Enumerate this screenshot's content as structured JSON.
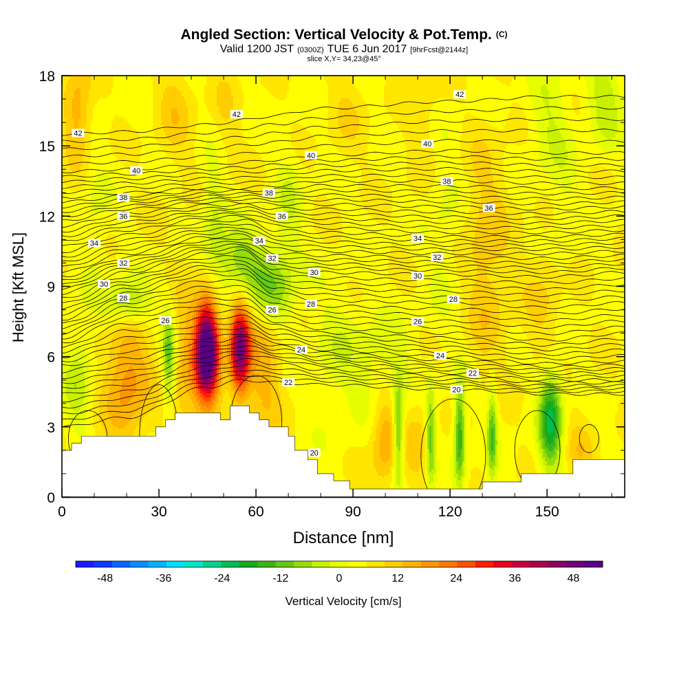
{
  "chart_data": {
    "type": "heatmap",
    "title": "Angled Section: Vertical Velocity & Pot.Temp.",
    "title_tag": "(C)",
    "subtitle_parts": [
      "Valid 1200 JST",
      "(0300Z)",
      "TUE 6 Jun 2017",
      "[9hrFcst@2144z]"
    ],
    "subtitle2": "slice X,Y= 34,23@45°",
    "xlabel": "Distance [nm]",
    "ylabel": "Height [Kft MSL]",
    "xlim": [
      0,
      174
    ],
    "ylim": [
      0,
      18
    ],
    "xticks": [
      0,
      30,
      60,
      90,
      120,
      150
    ],
    "yticks": [
      0,
      3,
      6,
      9,
      12,
      15,
      18
    ],
    "colorbar": {
      "label": "Vertical Velocity [cm/s]",
      "ticks": [
        -48,
        -36,
        -24,
        -12,
        0,
        12,
        24,
        36,
        48
      ],
      "range": [
        -54,
        54
      ],
      "colors": [
        "#1a1aff",
        "#0a3cff",
        "#0a64ff",
        "#0a8cff",
        "#00b4ff",
        "#00e1ff",
        "#00e6c8",
        "#00d28c",
        "#00be50",
        "#14aa1e",
        "#3cb414",
        "#64c814",
        "#96dc0a",
        "#c8f000",
        "#e6ff00",
        "#ffff00",
        "#ffe600",
        "#ffcd00",
        "#ffb400",
        "#ff9600",
        "#ff7800",
        "#ff5000",
        "#ff1e00",
        "#e6001e",
        "#c8003c",
        "#aa0050",
        "#8c0064",
        "#6e0078",
        "#5a0087"
      ]
    },
    "terrain_profile": [
      [
        0,
        2.0
      ],
      [
        3,
        2.0
      ],
      [
        3,
        2.3
      ],
      [
        6,
        2.3
      ],
      [
        6,
        2.6
      ],
      [
        9,
        2.6
      ],
      [
        9,
        2.6
      ],
      [
        29,
        2.6
      ],
      [
        29,
        3.0
      ],
      [
        32,
        3.0
      ],
      [
        32,
        3.3
      ],
      [
        35,
        3.3
      ],
      [
        35,
        3.6
      ],
      [
        49,
        3.6
      ],
      [
        49,
        3.3
      ],
      [
        52,
        3.3
      ],
      [
        52,
        3.9
      ],
      [
        58,
        3.9
      ],
      [
        58,
        3.6
      ],
      [
        61,
        3.6
      ],
      [
        61,
        3.3
      ],
      [
        64,
        3.3
      ],
      [
        64,
        3.0
      ],
      [
        70,
        3.0
      ],
      [
        70,
        2.6
      ],
      [
        72,
        2.6
      ],
      [
        72,
        2.0
      ],
      [
        76,
        2.0
      ],
      [
        76,
        1.6
      ],
      [
        79,
        1.6
      ],
      [
        79,
        1.0
      ],
      [
        84,
        1.0
      ],
      [
        84,
        0.7
      ],
      [
        89,
        0.7
      ],
      [
        89,
        0.35
      ],
      [
        130,
        0.35
      ],
      [
        130,
        0.65
      ],
      [
        142,
        0.65
      ],
      [
        142,
        1.0
      ],
      [
        158,
        1.0
      ],
      [
        158,
        1.6
      ],
      [
        174,
        1.6
      ]
    ],
    "w_features": [
      {
        "x": 45,
        "y": 6.3,
        "sx": 2.4,
        "sy": 1.4,
        "w": 52
      },
      {
        "x": 55,
        "y": 6.3,
        "sx": 2.2,
        "sy": 1.3,
        "w": 42
      },
      {
        "x": 40,
        "y": 5.5,
        "sx": 5,
        "sy": 2.5,
        "w": 10
      },
      {
        "x": 62,
        "y": 5.5,
        "sx": 4,
        "sy": 2.2,
        "w": 10
      },
      {
        "x": 20,
        "y": 5.0,
        "sx": 5,
        "sy": 2.0,
        "w": 14
      },
      {
        "x": 5,
        "y": 16.5,
        "sx": 3,
        "sy": 1.5,
        "w": 11
      },
      {
        "x": 35,
        "y": 16.5,
        "sx": 4,
        "sy": 1.6,
        "w": 6
      },
      {
        "x": 50,
        "y": 16.0,
        "sx": 3,
        "sy": 2.0,
        "w": 4
      },
      {
        "x": 100,
        "y": 2.6,
        "sx": 3,
        "sy": 1.5,
        "w": 12
      },
      {
        "x": 110,
        "y": 2.5,
        "sx": 3,
        "sy": 1.5,
        "w": 6
      },
      {
        "x": 131,
        "y": 11.5,
        "sx": 5,
        "sy": 3.0,
        "w": 6
      },
      {
        "x": 150,
        "y": 8.5,
        "sx": 5,
        "sy": 2.5,
        "w": 5
      },
      {
        "x": 132,
        "y": 7.5,
        "sx": 4,
        "sy": 2.0,
        "w": 4
      },
      {
        "x": 112,
        "y": 16.0,
        "sx": 4,
        "sy": 2.0,
        "w": 4
      },
      {
        "x": 88,
        "y": 16.5,
        "sx": 4,
        "sy": 1.5,
        "w": 4
      },
      {
        "x": 160,
        "y": 2.0,
        "sx": 3,
        "sy": 1.0,
        "w": 6
      },
      {
        "x": 65,
        "y": 9.0,
        "sx": 5,
        "sy": 1.2,
        "w": -14
      },
      {
        "x": 55,
        "y": 10.0,
        "sx": 5,
        "sy": 1.0,
        "w": -13
      },
      {
        "x": 33,
        "y": 6.0,
        "sx": 1.5,
        "sy": 1.5,
        "w": -18
      },
      {
        "x": 20,
        "y": 8.3,
        "sx": 5,
        "sy": 0.7,
        "w": -14
      },
      {
        "x": 5,
        "y": 5.0,
        "sx": 3,
        "sy": 1.5,
        "w": -9
      },
      {
        "x": 104,
        "y": 2.7,
        "sx": 1.1,
        "sy": 1.5,
        "w": -20
      },
      {
        "x": 114,
        "y": 2.5,
        "sx": 1.1,
        "sy": 1.5,
        "w": -17
      },
      {
        "x": 123,
        "y": 2.7,
        "sx": 1.2,
        "sy": 1.5,
        "w": -22
      },
      {
        "x": 133,
        "y": 2.7,
        "sx": 1.1,
        "sy": 1.5,
        "w": -17
      },
      {
        "x": 151,
        "y": 3.3,
        "sx": 2.5,
        "sy": 1.5,
        "w": -26
      },
      {
        "x": 47,
        "y": 12.0,
        "sx": 2.5,
        "sy": 2.0,
        "w": -8
      },
      {
        "x": 70,
        "y": 12.5,
        "sx": 3,
        "sy": 1.5,
        "w": -6
      },
      {
        "x": 168,
        "y": 17.0,
        "sx": 4,
        "sy": 1.5,
        "w": -9
      },
      {
        "x": 150,
        "y": 16.0,
        "sx": 4,
        "sy": 2.0,
        "w": -6
      },
      {
        "x": 118,
        "y": 12.0,
        "sx": 4,
        "sy": 3.0,
        "w": -4
      },
      {
        "x": 85,
        "y": 6.0,
        "sx": 6,
        "sy": 2.0,
        "w": -5
      },
      {
        "x": 100,
        "y": 5.5,
        "sx": 6,
        "sy": 1.5,
        "w": -6
      },
      {
        "x": 155,
        "y": 12.0,
        "sx": 3,
        "sy": 3.0,
        "w": -4
      },
      {
        "x": 10,
        "y": 12.0,
        "sx": 3,
        "sy": 2.0,
        "w": -4
      }
    ],
    "theta_profile": {
      "x": [
        0,
        20,
        45,
        56,
        66,
        80,
        120,
        150,
        174
      ],
      "rows": [
        {
          "theta": 20,
          "h": [
            3.0,
            3.4,
            4.7,
            5.0,
            4.9,
            4.8,
            4.6,
            4.4,
            4.4
          ]
        },
        {
          "theta": 22,
          "h": [
            4.4,
            4.8,
            5.8,
            6.1,
            5.9,
            5.6,
            5.3,
            5.0,
            5.0
          ]
        },
        {
          "theta": 24,
          "h": [
            5.6,
            6.2,
            6.8,
            7.0,
            6.6,
            6.3,
            6.0,
            5.7,
            5.8
          ]
        },
        {
          "theta": 26,
          "h": [
            6.6,
            7.7,
            8.2,
            8.2,
            7.5,
            7.2,
            7.0,
            6.7,
            7.0
          ]
        },
        {
          "theta": 28,
          "h": [
            7.6,
            8.7,
            9.5,
            9.5,
            8.7,
            8.4,
            8.3,
            8.1,
            8.3
          ]
        },
        {
          "theta": 30,
          "h": [
            8.7,
            9.6,
            10.4,
            10.5,
            9.7,
            9.6,
            9.5,
            9.4,
            9.6
          ]
        },
        {
          "theta": 32,
          "h": [
            9.6,
            10.4,
            11.1,
            11.2,
            10.6,
            10.5,
            10.4,
            10.4,
            10.5
          ]
        },
        {
          "theta": 34,
          "h": [
            10.7,
            11.4,
            11.9,
            12.0,
            11.6,
            11.5,
            11.3,
            11.3,
            11.4
          ]
        },
        {
          "theta": 36,
          "h": [
            11.8,
            12.3,
            12.6,
            12.6,
            12.5,
            12.5,
            12.4,
            12.3,
            12.4
          ]
        },
        {
          "theta": 38,
          "h": [
            12.8,
            13.0,
            13.2,
            13.2,
            13.3,
            13.5,
            13.5,
            13.4,
            13.4
          ]
        },
        {
          "theta": 40,
          "h": [
            13.9,
            14.0,
            14.2,
            14.3,
            14.4,
            14.6,
            14.8,
            14.7,
            14.7
          ]
        },
        {
          "theta": 42,
          "h": [
            15.5,
            15.6,
            15.9,
            16.1,
            16.3,
            16.6,
            16.9,
            17.1,
            17.1
          ]
        }
      ]
    },
    "theta_labels": [
      {
        "text": "42",
        "x": 5,
        "y": 15.55
      },
      {
        "text": "42",
        "x": 54,
        "y": 16.35
      },
      {
        "text": "42",
        "x": 123,
        "y": 17.2
      },
      {
        "text": "40",
        "x": 23,
        "y": 13.95
      },
      {
        "text": "40",
        "x": 77,
        "y": 14.6
      },
      {
        "text": "40",
        "x": 113,
        "y": 15.1
      },
      {
        "text": "38",
        "x": 19,
        "y": 12.8
      },
      {
        "text": "38",
        "x": 64,
        "y": 13.0
      },
      {
        "text": "38",
        "x": 119,
        "y": 13.5
      },
      {
        "text": "36",
        "x": 19,
        "y": 12.0
      },
      {
        "text": "36",
        "x": 68,
        "y": 12.0
      },
      {
        "text": "36",
        "x": 132,
        "y": 12.35
      },
      {
        "text": "34",
        "x": 10,
        "y": 10.85
      },
      {
        "text": "34",
        "x": 61,
        "y": 10.95
      },
      {
        "text": "34",
        "x": 110,
        "y": 11.05
      },
      {
        "text": "32",
        "x": 19,
        "y": 10.0
      },
      {
        "text": "32",
        "x": 65,
        "y": 10.2
      },
      {
        "text": "32",
        "x": 116,
        "y": 10.25
      },
      {
        "text": "30",
        "x": 13,
        "y": 9.1
      },
      {
        "text": "30",
        "x": 78,
        "y": 9.6
      },
      {
        "text": "30",
        "x": 110,
        "y": 9.45
      },
      {
        "text": "28",
        "x": 19,
        "y": 8.5
      },
      {
        "text": "28",
        "x": 77,
        "y": 8.25
      },
      {
        "text": "28",
        "x": 121,
        "y": 8.45
      },
      {
        "text": "26",
        "x": 32,
        "y": 7.55
      },
      {
        "text": "26",
        "x": 65,
        "y": 8.0
      },
      {
        "text": "26",
        "x": 110,
        "y": 7.5
      },
      {
        "text": "24",
        "x": 74,
        "y": 6.3
      },
      {
        "text": "24",
        "x": 117,
        "y": 6.05
      },
      {
        "text": "22",
        "x": 70,
        "y": 4.9
      },
      {
        "text": "22",
        "x": 127,
        "y": 5.3
      },
      {
        "text": "20",
        "x": 78,
        "y": 1.9
      },
      {
        "text": "20",
        "x": 122,
        "y": 4.6
      }
    ]
  }
}
